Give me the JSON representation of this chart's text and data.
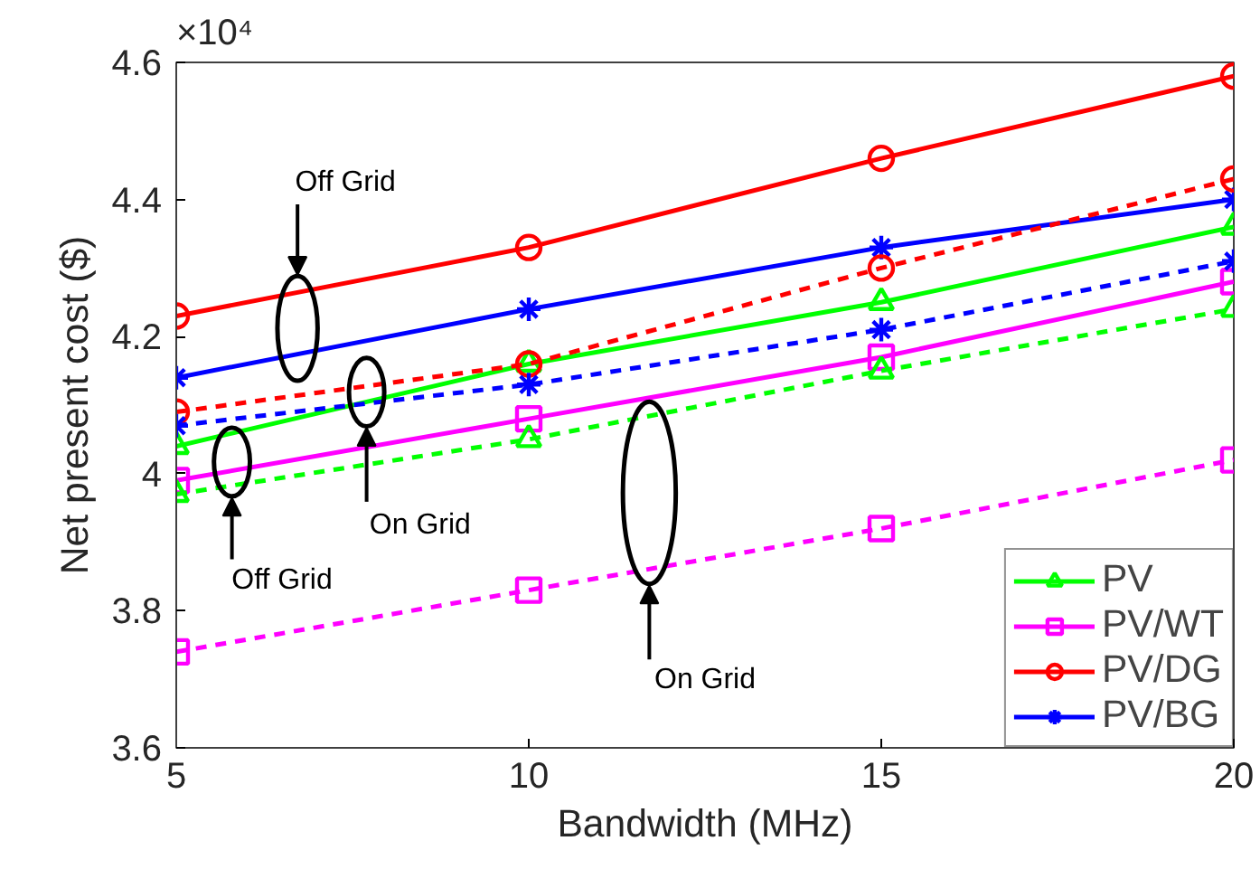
{
  "chart_data": {
    "type": "line",
    "xlabel": "Bandwidth (MHz)",
    "ylabel": "Net present cost ($)",
    "x": [
      5,
      10,
      15,
      20
    ],
    "series": [
      {
        "name": "PV",
        "color": "#00ff00",
        "marker": "triangle",
        "line_style": "solid",
        "values": [
          4.04,
          4.16,
          4.25,
          4.36
        ]
      },
      {
        "name": "PV/WT",
        "color": "#ff00ff",
        "marker": "square",
        "line_style": "solid",
        "values": [
          3.99,
          4.08,
          4.17,
          4.28
        ]
      },
      {
        "name": "PV/DG",
        "color": "#ff0000",
        "marker": "circle",
        "line_style": "solid",
        "values": [
          4.23,
          4.33,
          4.46,
          4.58
        ]
      },
      {
        "name": "PV/BG",
        "color": "#0000ff",
        "marker": "cross",
        "line_style": "solid",
        "values": [
          4.14,
          4.24,
          4.33,
          4.4
        ]
      },
      {
        "color": "#00ff00",
        "marker": "triangle",
        "line_style": "dashed",
        "values": [
          3.97,
          4.05,
          4.15,
          4.24
        ]
      },
      {
        "color": "#ff00ff",
        "marker": "square",
        "line_style": "dashed",
        "values": [
          3.74,
          3.83,
          3.92,
          4.02
        ]
      },
      {
        "color": "#ff0000",
        "marker": "circle",
        "line_style": "dashed",
        "values": [
          4.09,
          4.16,
          4.3,
          4.43
        ]
      },
      {
        "color": "#0000ff",
        "marker": "cross",
        "line_style": "dashed",
        "values": [
          4.07,
          4.13,
          4.21,
          4.31
        ]
      }
    ],
    "xlim": [
      5,
      20
    ],
    "xticks": [
      5,
      10,
      15,
      20
    ],
    "ylim": [
      3.6,
      4.6
    ],
    "yticks": [
      3.6,
      3.8,
      4.0,
      4.2,
      4.4,
      4.6
    ],
    "grid": false,
    "legend": "bottom right",
    "annotations": [
      "×10⁴",
      "Off Grid",
      "Off Grid",
      "On Grid",
      "On Grid"
    ]
  }
}
